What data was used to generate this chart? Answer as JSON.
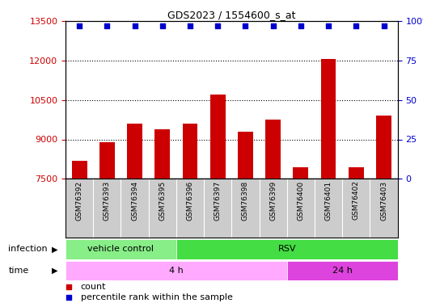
{
  "title": "GDS2023 / 1554600_s_at",
  "samples": [
    "GSM76392",
    "GSM76393",
    "GSM76394",
    "GSM76395",
    "GSM76396",
    "GSM76397",
    "GSM76398",
    "GSM76399",
    "GSM76400",
    "GSM76401",
    "GSM76402",
    "GSM76403"
  ],
  "counts": [
    8200,
    8900,
    9600,
    9400,
    9600,
    10700,
    9300,
    9750,
    7950,
    12050,
    7950,
    9900
  ],
  "percentile_ranks": [
    97,
    97,
    97,
    97,
    97,
    97,
    97,
    97,
    97,
    97,
    97,
    97
  ],
  "ylim_left": [
    7500,
    13500
  ],
  "ylim_right": [
    0,
    100
  ],
  "yticks_left": [
    7500,
    9000,
    10500,
    12000,
    13500
  ],
  "yticks_right": [
    0,
    25,
    50,
    75,
    100
  ],
  "bar_color": "#cc0000",
  "dot_color": "#0000cc",
  "infection_vc_color": "#88ee88",
  "infection_rsv_color": "#44dd44",
  "time_4h_color": "#ffaaff",
  "time_24h_color": "#dd44dd",
  "label_bg_color": "#cccccc",
  "legend_items": [
    {
      "label": "count",
      "color": "#cc0000"
    },
    {
      "label": "percentile rank within the sample",
      "color": "#0000cc"
    }
  ]
}
